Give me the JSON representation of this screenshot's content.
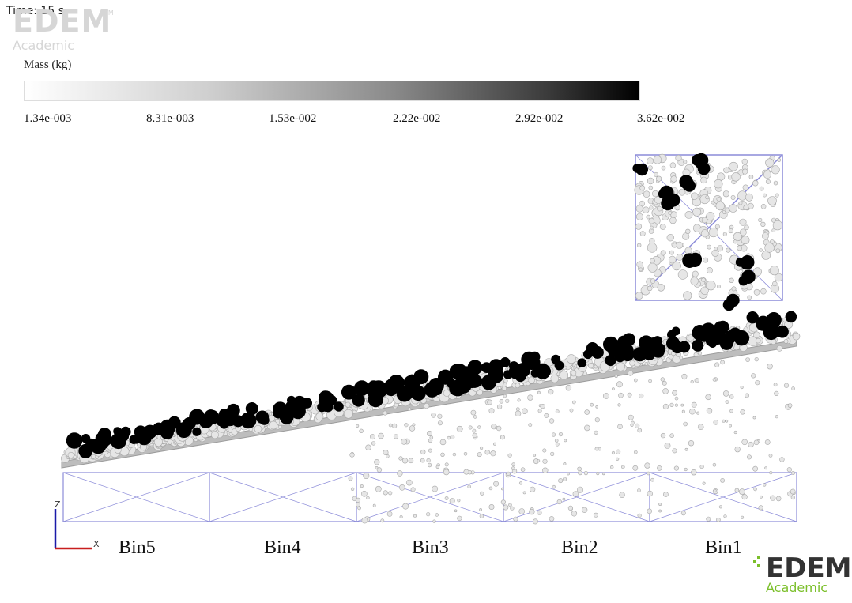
{
  "time_label": "Time: 15 s",
  "watermark_top": {
    "big": "EDEM",
    "tm": "TM",
    "small": "Academic"
  },
  "legend": {
    "title": "Mass (kg)",
    "ticks": [
      "1.34e-003",
      "8.31e-003",
      "1.53e-002",
      "2.22e-002",
      "2.92e-002",
      "3.62e-002"
    ]
  },
  "axis": {
    "z": "Z",
    "x": "X"
  },
  "bins": [
    "Bin5",
    "Bin4",
    "Bin3",
    "Bin2",
    "Bin1"
  ],
  "watermark_bottom": {
    "big": "EDEM",
    "small": "Academic",
    "accent": "#7bbf2a"
  },
  "colors": {
    "frame": "#8c8cd9",
    "particle_light": "#e6e6e6",
    "particle_dark": "#000000"
  }
}
